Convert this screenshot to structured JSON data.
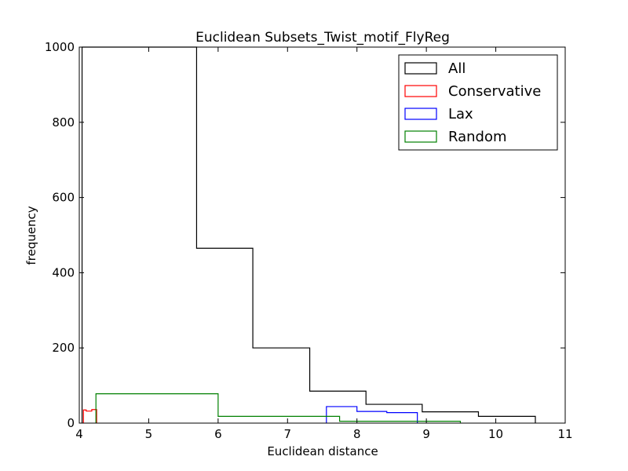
{
  "chart_data": {
    "type": "histogram",
    "title": "Euclidean Subsets_Twist_motif_FlyReg",
    "xlabel": "Euclidean distance",
    "ylabel": "frequency",
    "xlim": [
      4,
      11
    ],
    "ylim": [
      0,
      1000
    ],
    "xticks": [
      4,
      5,
      6,
      7,
      8,
      9,
      10,
      11
    ],
    "yticks": [
      0,
      200,
      400,
      600,
      800,
      1000
    ],
    "grid": false,
    "legend_position": "upper-right",
    "series": [
      {
        "name": "All",
        "color": "#000000",
        "bins": [
          {
            "x0": 4.04,
            "x1": 4.07,
            "count": 1000
          },
          {
            "x0": 4.07,
            "x1": 5.69,
            "count": 1000
          },
          {
            "x0": 5.69,
            "x1": 6.5,
            "count": 465
          },
          {
            "x0": 6.5,
            "x1": 7.32,
            "count": 200
          },
          {
            "x0": 7.32,
            "x1": 8.13,
            "count": 85
          },
          {
            "x0": 8.13,
            "x1": 8.94,
            "count": 50
          },
          {
            "x0": 8.94,
            "x1": 9.75,
            "count": 30
          },
          {
            "x0": 9.75,
            "x1": 10.57,
            "count": 18
          }
        ]
      },
      {
        "name": "Conservative",
        "color": "#ff0000",
        "bins": [
          {
            "x0": 4.06,
            "x1": 4.1,
            "count": 35
          },
          {
            "x0": 4.1,
            "x1": 4.14,
            "count": 32
          },
          {
            "x0": 4.14,
            "x1": 4.18,
            "count": 32
          },
          {
            "x0": 4.18,
            "x1": 4.22,
            "count": 36
          },
          {
            "x0": 4.22,
            "x1": 4.25,
            "count": 36
          }
        ]
      },
      {
        "name": "Lax",
        "color": "#0000ff",
        "bins": [
          {
            "x0": 7.56,
            "x1": 8.0,
            "count": 44
          },
          {
            "x0": 8.0,
            "x1": 8.43,
            "count": 31
          },
          {
            "x0": 8.43,
            "x1": 8.87,
            "count": 28
          }
        ]
      },
      {
        "name": "Random",
        "color": "#008000",
        "bins": [
          {
            "x0": 4.24,
            "x1": 6.0,
            "count": 78
          },
          {
            "x0": 6.0,
            "x1": 7.75,
            "count": 18
          },
          {
            "x0": 7.75,
            "x1": 9.49,
            "count": 5
          }
        ]
      }
    ]
  }
}
